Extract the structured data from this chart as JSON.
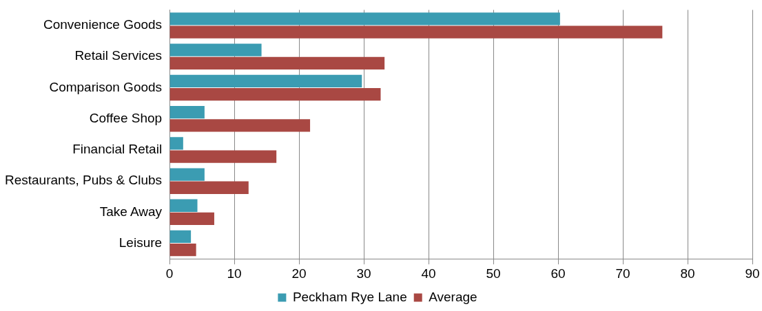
{
  "chart_data": {
    "type": "bar",
    "orientation": "horizontal",
    "categories": [
      "Convenience Goods",
      "Retail Services",
      "Comparison Goods",
      "Coffee Shop",
      "Financial Retail",
      "Restaurants, Pubs & Clubs",
      "Take Away",
      "Leisure"
    ],
    "series": [
      {
        "name": "Peckham Rye Lane",
        "color": "#3b9cb2",
        "values": [
          60.3,
          14.2,
          29.7,
          5.4,
          2.1,
          5.4,
          4.3,
          3.3
        ]
      },
      {
        "name": "Average",
        "color": "#a94843",
        "values": [
          76.1,
          33.2,
          32.6,
          21.7,
          16.5,
          12.2,
          6.9,
          4.1
        ]
      }
    ],
    "xlim": [
      0,
      90
    ],
    "xticks": [
      0,
      10,
      20,
      30,
      40,
      50,
      60,
      70,
      80,
      90
    ],
    "grid": "x",
    "legend": "bottom"
  }
}
